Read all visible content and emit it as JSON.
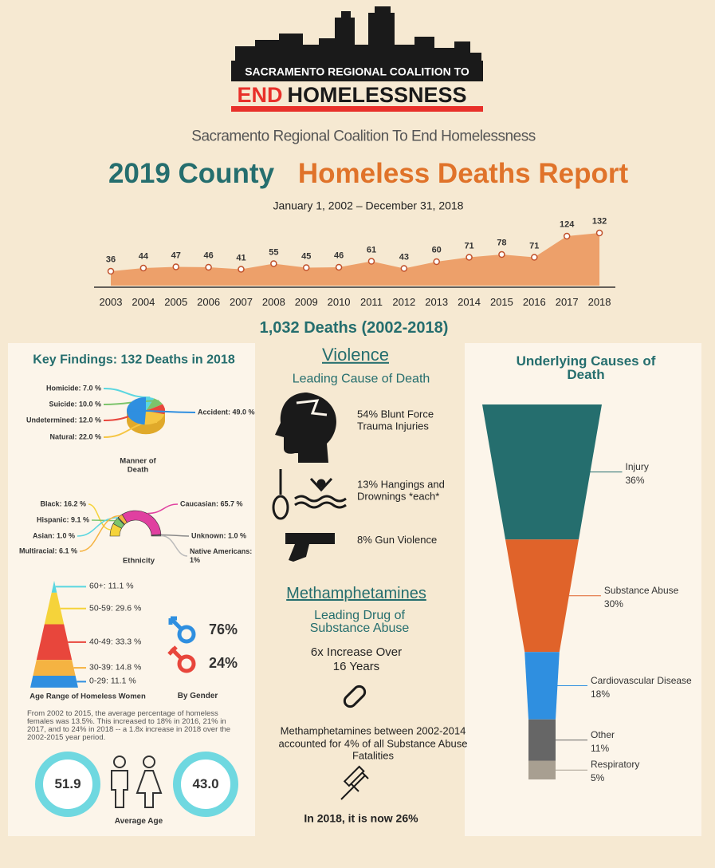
{
  "header": {
    "banner_line1": "SACRAMENTO REGIONAL COALITION TO",
    "banner_end": "END",
    "banner_rest": "HOMELESSNESS",
    "subtitle": "Sacramento Regional Coalition To End Homelessness",
    "title_part1": "2019 County",
    "title_part2": "Homeless Deaths Report",
    "date_range": "January 1, 2002 – December 31, 2018"
  },
  "chart_data": [
    {
      "type": "area",
      "x": [
        2003,
        2004,
        2005,
        2006,
        2007,
        2008,
        2009,
        2010,
        2011,
        2012,
        2013,
        2014,
        2015,
        2016,
        2017,
        2018
      ],
      "values": [
        36,
        44,
        47,
        46,
        41,
        55,
        45,
        46,
        61,
        43,
        60,
        71,
        78,
        71,
        124,
        132
      ],
      "color": "#eda06a",
      "marker_color": "#c0502a"
    },
    {
      "type": "pie",
      "title": "Manner of Death",
      "values": [
        7.0,
        10.0,
        12.0,
        22.0,
        49.0
      ],
      "value_labels": [
        "Homicide: 7.0 %",
        "Suicide: 10.0 %",
        "Undetermined: 12.0 %",
        "Natural: 22.0 %",
        "Accident: 49.0 %"
      ],
      "colors": [
        "#5ad6e0",
        "#7cc46b",
        "#e8463c",
        "#f5c542",
        "#2f8fe0"
      ]
    },
    {
      "type": "donut",
      "title": "Ethnicity",
      "values": [
        16.2,
        9.1,
        1.0,
        6.1,
        65.7,
        1.0,
        1
      ],
      "value_labels": [
        "Black: 16.2 %",
        "Hispanic: 9.1 %",
        "Asian: 1.0 %",
        "Multiracial: 6.1 %",
        "Caucasian: 65.7 %",
        "Unknown: 1.0 %",
        "Native Americans: 1%"
      ],
      "colors": [
        "#f5d33a",
        "#7cc46b",
        "#5ad6e0",
        "#f5b342",
        "#e040a0",
        "#888888",
        "#bbbbbb"
      ]
    },
    {
      "type": "pyramid",
      "title": "Age Range of Homeless Women",
      "values": [
        11.1,
        29.6,
        33.3,
        14.8,
        11.1
      ],
      "value_labels": [
        "60+: 11.1 %",
        "50-59: 29.6 %",
        "40-49: 33.3 %",
        "30-39: 14.8 %",
        "0-29: 11.1 %"
      ],
      "colors": [
        "#5ad6e0",
        "#f5d33a",
        "#e8463c",
        "#f5b342",
        "#2f8fe0"
      ]
    },
    {
      "type": "funnel",
      "title": "Underlying Causes of Death",
      "categories": [
        "Injury",
        "Substance Abuse",
        "Cardiovascular Disease",
        "Other",
        "Respiratory"
      ],
      "values": [
        36,
        30,
        18,
        11,
        5
      ],
      "value_labels": [
        "36%",
        "30%",
        "18%",
        "11%",
        "5%"
      ],
      "colors": [
        "#256e6e",
        "#e0632a",
        "#2f8fe0",
        "#666666",
        "#a89f91"
      ]
    }
  ],
  "summary": {
    "total_deaths": "1,032 Deaths (2002-2018)"
  },
  "key_findings": {
    "title": "Key Findings: 132 Deaths in 2018",
    "gender_label": "By Gender",
    "male": "76%",
    "female": "24%",
    "note": "From 2002 to 2015, the average percentage of homeless females was 13.5%. This increased to 18% in 2016, 21% in 2017, and to 24% in 2018 -- a 1.8x increase in 2018 over the 2002-2015 year period.",
    "average_age_1": "51.9",
    "average_age_2": "43.0",
    "average_age_label": "Average Age"
  },
  "violence": {
    "heading": "Violence",
    "subheading": "Leading Cause of Death",
    "items": [
      "54% Blunt Force Trauma Injuries",
      "13% Hangings and Drownings *each*",
      "8% Gun Violence"
    ]
  },
  "meth": {
    "heading": "Methamphetamines",
    "subheading": "Leading Drug of Substance Abuse",
    "increase": "6x Increase Over 16 Years",
    "note": "Methamphetamines between 2002-2014 accounted for 4% of all Substance Abuse Fatalities",
    "now": "In 2018, it is now 26%"
  }
}
